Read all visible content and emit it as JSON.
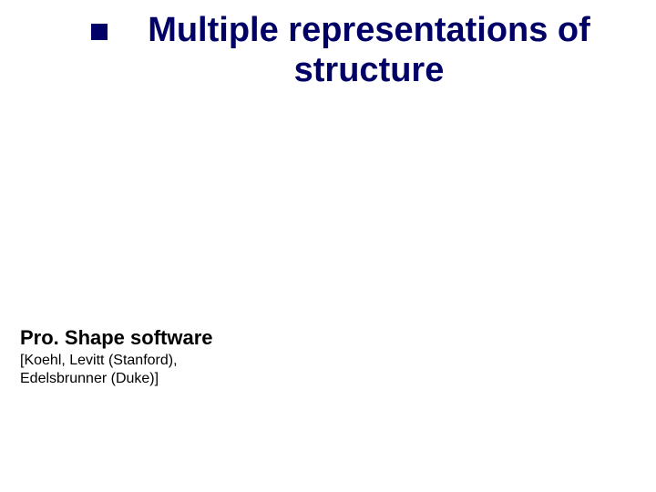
{
  "title": {
    "line1": "Multiple representations of",
    "line2": "structure"
  },
  "software": {
    "name": "Pro. Shape software",
    "citation_line1": "[Koehl, Levitt (Stanford),",
    "citation_line2": "Edelsbrunner (Duke)]"
  },
  "colors": {
    "title_color": "#000066",
    "bullet_color": "#000066",
    "text_color": "#000000",
    "background": "#ffffff"
  },
  "typography": {
    "title_fontsize": 38,
    "software_fontsize": 22,
    "citation_fontsize": 16,
    "font_family": "Comic Sans MS"
  }
}
